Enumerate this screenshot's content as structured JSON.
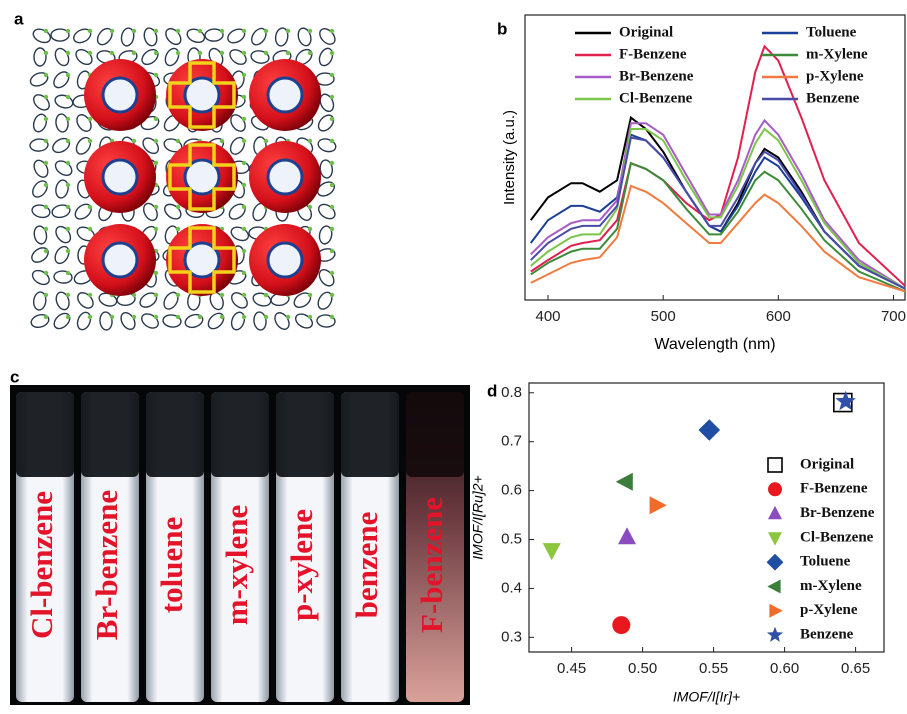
{
  "panel_labels": [
    "a",
    "b",
    "c",
    "d"
  ],
  "vial_labels": [
    "Cl-benzene",
    "Br-benzene",
    "toluene",
    "m-xylene",
    "p-xylene",
    "benzene",
    "F-benzene"
  ],
  "chart_data": [
    {
      "type": "line",
      "xlabel": "Wavelength (nm)",
      "ylabel": "Intensity (a.u.)",
      "xlim": [
        380,
        710
      ],
      "ylim": [
        0,
        100
      ],
      "xticks": [
        400,
        500,
        600,
        700
      ],
      "x": [
        385,
        400,
        420,
        430,
        445,
        460,
        472,
        485,
        500,
        520,
        540,
        550,
        565,
        580,
        588,
        600,
        620,
        640,
        670,
        710
      ],
      "series": [
        {
          "name": "Original",
          "color": "#000000",
          "values": [
            28,
            36,
            41,
            41,
            38,
            42,
            64,
            60,
            52,
            38,
            26,
            24,
            34,
            48,
            53,
            50,
            38,
            24,
            12,
            4
          ]
        },
        {
          "name": "Toluene",
          "color": "#1a3f99",
          "values": [
            20,
            28,
            33,
            33,
            31,
            36,
            58,
            56,
            50,
            38,
            26,
            24,
            33,
            45,
            50,
            47,
            36,
            24,
            12,
            4
          ]
        },
        {
          "name": "F-Benzene",
          "color": "#e0204f",
          "values": [
            10,
            14,
            19,
            20,
            21,
            28,
            48,
            46,
            42,
            34,
            28,
            30,
            50,
            80,
            89,
            84,
            64,
            42,
            20,
            5
          ]
        },
        {
          "name": "m-Xylene",
          "color": "#3d8a3a",
          "values": [
            9,
            13,
            17,
            18,
            18,
            25,
            48,
            46,
            42,
            32,
            23,
            23,
            31,
            42,
            45,
            42,
            32,
            21,
            10,
            3
          ]
        },
        {
          "name": "Br-Benzene",
          "color": "#a85cc8",
          "values": [
            16,
            22,
            27,
            28,
            28,
            35,
            62,
            62,
            58,
            44,
            30,
            30,
            42,
            58,
            63,
            58,
            44,
            28,
            14,
            4
          ]
        },
        {
          "name": "p-Xylene",
          "color": "#f07a40",
          "values": [
            6,
            9,
            13,
            14,
            15,
            22,
            40,
            38,
            34,
            27,
            20,
            20,
            27,
            34,
            37,
            34,
            26,
            17,
            8,
            3
          ]
        },
        {
          "name": "Cl-Benzene",
          "color": "#7cc44a",
          "values": [
            12,
            17,
            22,
            23,
            23,
            32,
            60,
            60,
            56,
            42,
            29,
            29,
            40,
            55,
            60,
            56,
            42,
            27,
            13,
            4
          ]
        },
        {
          "name": "Benzene",
          "color": "#4a4aa8",
          "values": [
            14,
            20,
            25,
            26,
            26,
            33,
            57,
            56,
            50,
            38,
            26,
            26,
            36,
            48,
            52,
            49,
            37,
            24,
            12,
            4
          ]
        }
      ]
    },
    {
      "type": "scatter",
      "xlabel": "IMOF/I[Ir]+",
      "ylabel": "IMOF/I[Ru]2+",
      "xlim": [
        0.42,
        0.67
      ],
      "ylim": [
        0.27,
        0.82
      ],
      "xticks": [
        {
          "value": 0.45,
          "label": "0.45"
        },
        {
          "value": 0.5,
          "label": "0.50"
        },
        {
          "value": 0.55,
          "label": "0.55"
        },
        {
          "value": 0.6,
          "label": "0.60"
        },
        {
          "value": 0.65,
          "label": "0.65"
        }
      ],
      "yticks": [
        0.3,
        0.4,
        0.5,
        0.6,
        0.7,
        0.8
      ],
      "series": [
        {
          "name": "Original",
          "color": "#000000",
          "marker": "square-open",
          "x": [
            0.641
          ],
          "values": [
            0.78
          ]
        },
        {
          "name": "F-Benzene",
          "color": "#e8191e",
          "marker": "circle",
          "x": [
            0.485
          ],
          "values": [
            0.325
          ]
        },
        {
          "name": "Br-Benzene",
          "color": "#8a4cc0",
          "marker": "triangle-up",
          "x": [
            0.489
          ],
          "values": [
            0.505
          ]
        },
        {
          "name": "Cl-Benzene",
          "color": "#8cc63f",
          "marker": "triangle-down",
          "x": [
            0.436
          ],
          "values": [
            0.478
          ]
        },
        {
          "name": "Toluene",
          "color": "#1f4ea3",
          "marker": "diamond",
          "x": [
            0.547
          ],
          "values": [
            0.724
          ]
        },
        {
          "name": "m-Xylene",
          "color": "#3b7d3a",
          "marker": "triangle-left",
          "x": [
            0.488
          ],
          "values": [
            0.618
          ]
        },
        {
          "name": "p-Xylene",
          "color": "#f26b2a",
          "marker": "triangle-right",
          "x": [
            0.51
          ],
          "values": [
            0.57
          ]
        },
        {
          "name": "Benzene",
          "color": "#2f4fa8",
          "marker": "star",
          "x": [
            0.643
          ],
          "values": [
            0.782
          ]
        }
      ]
    }
  ]
}
